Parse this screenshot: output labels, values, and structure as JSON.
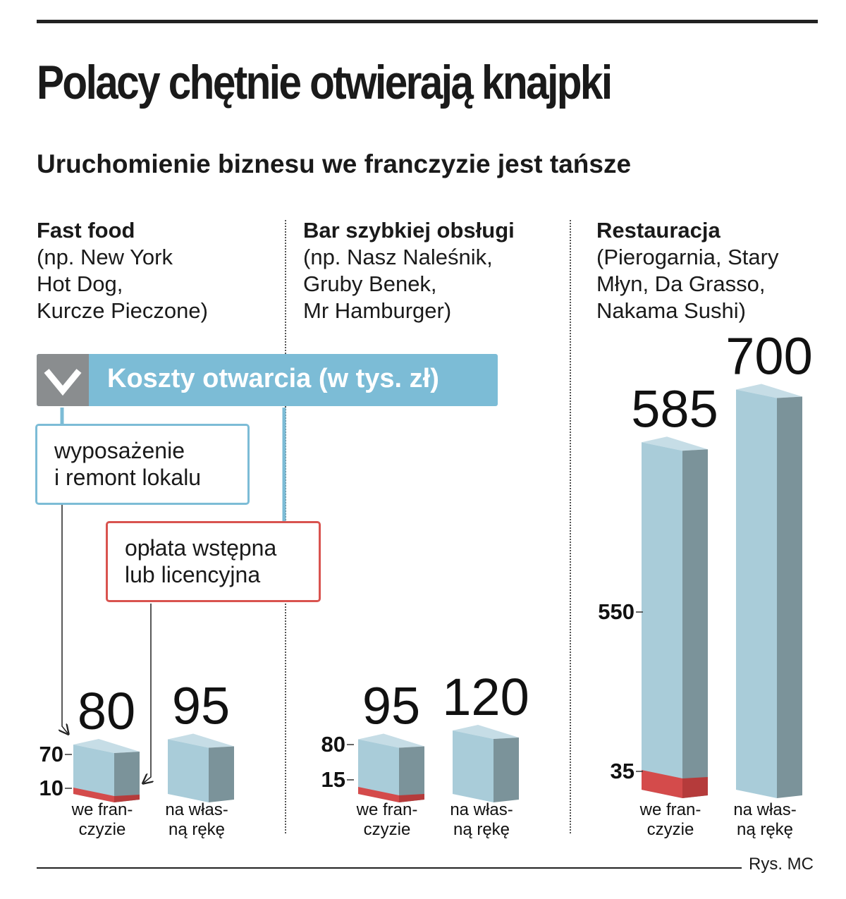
{
  "title": "Polacy chętnie otwierają knajpki",
  "subtitle": "Uruchomienie biznesu we franczyzie jest tańsze",
  "categories": [
    {
      "head": "Fast food",
      "desc": [
        "(np. New York",
        "Hot Dog,",
        "Kurcze Pieczone)"
      ]
    },
    {
      "head": "Bar szybkiej obsługi",
      "desc": [
        "(np. Nasz Naleśnik,",
        "Gruby Benek,",
        "Mr Hamburger)"
      ]
    },
    {
      "head": "Restauracja",
      "desc": [
        "(Pierogarnia, Stary",
        "Młyn, Da Grasso,",
        "Nakama Sushi)"
      ]
    }
  ],
  "legend": {
    "label": "Koszty otwarcia (w tys. zł)",
    "equipment": [
      "wyposażenie",
      "i remont lokalu"
    ],
    "fee": [
      "opłata wstępna",
      "lub licencyjna"
    ]
  },
  "credit": "Rys. MC",
  "colors": {
    "bar_front": "#a9ccd9",
    "bar_side": "#7b939a",
    "bar_top": "#c6dde6",
    "fee": "#d44b4b",
    "legend": "#7cbcd6",
    "chevron_bg": "#8a8d8f"
  },
  "chart_data": [
    {
      "type": "bar",
      "title": "Fast food",
      "categories": [
        "we franczyzie",
        "na własną rękę"
      ],
      "category_labels": [
        [
          "we fran-",
          "czyzie"
        ],
        [
          "na włas-",
          "ną rękę"
        ]
      ],
      "totals": [
        80,
        95
      ],
      "series": [
        {
          "name": "opłata wstępna lub licencyjna",
          "values": [
            10,
            null
          ]
        },
        {
          "name": "wyposażenie i remont lokalu",
          "values": [
            70,
            null
          ]
        }
      ],
      "axis_labels": [
        {
          "value": "70",
          "at": 80
        },
        {
          "value": "10",
          "at": 10
        }
      ]
    },
    {
      "type": "bar",
      "title": "Bar szybkiej obsługi",
      "categories": [
        "we franczyzie",
        "na własną rękę"
      ],
      "category_labels": [
        [
          "we fran-",
          "czyzie"
        ],
        [
          "na włas-",
          "ną rękę"
        ]
      ],
      "totals": [
        95,
        120
      ],
      "series": [
        {
          "name": "opłata wstępna lub licencyjna",
          "values": [
            15,
            null
          ]
        },
        {
          "name": "wyposażenie i remont lokalu",
          "values": [
            80,
            null
          ]
        }
      ],
      "axis_labels": [
        {
          "value": "80",
          "at": 95
        },
        {
          "value": "15",
          "at": 15
        }
      ]
    },
    {
      "type": "bar",
      "title": "Restauracja",
      "categories": [
        "we franczyzie",
        "na własną rękę"
      ],
      "category_labels": [
        [
          "we fran-",
          "czyzie"
        ],
        [
          "na włas-",
          "ną rękę"
        ]
      ],
      "totals": [
        585,
        700
      ],
      "series": [
        {
          "name": "opłata wstępna lub licencyjna",
          "values": [
            35,
            null
          ]
        },
        {
          "name": "wyposażenie i remont lokalu",
          "values": [
            550,
            null
          ]
        }
      ],
      "axis_labels": [
        {
          "value": "550",
          "at": 550
        },
        {
          "value": "35",
          "at": 35
        }
      ]
    }
  ]
}
